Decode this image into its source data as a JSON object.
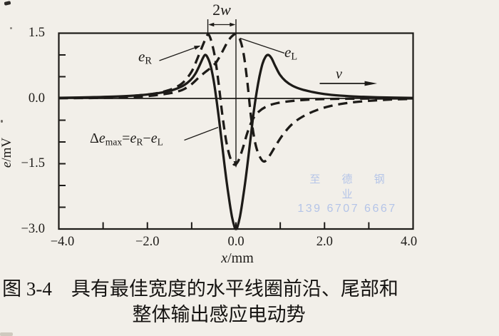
{
  "page": {
    "background": "#f2efe9",
    "ink": "#1d1b18"
  },
  "chart_data": {
    "type": "line",
    "xlabel_var": "x",
    "xlabel_unit": "/mm",
    "ylabel_var": "e",
    "ylabel_unit": "/mV",
    "xlim": [
      -4,
      4
    ],
    "ylim": [
      -3,
      1.5
    ],
    "grid": false,
    "x_ticks_labeled": [
      {
        "v": -4,
        "label": "−4.0"
      },
      {
        "v": -2,
        "label": "−2.0"
      },
      {
        "v": 0,
        "label": "0.0"
      },
      {
        "v": 2,
        "label": "2.0"
      },
      {
        "v": 4,
        "label": "4.0"
      }
    ],
    "x_ticks_minor": [
      -3,
      -2,
      -1,
      0,
      1,
      2,
      3
    ],
    "y_ticks_labeled": [
      {
        "v": 1.5,
        "label": "1.5"
      },
      {
        "v": 0,
        "label": "0.0"
      },
      {
        "v": -1.5,
        "label": "−1.5"
      },
      {
        "v": -3,
        "label": "−3.0"
      }
    ],
    "y_ticks_minor": [
      1.0,
      0.5,
      0,
      -0.5,
      -1.0,
      -1.5,
      -2.0,
      -2.5
    ],
    "zero_line": true,
    "series": [
      {
        "name": "e_R",
        "line": "dashed",
        "points": [
          [
            -4,
            0.01
          ],
          [
            -3.2,
            0.02
          ],
          [
            -2.6,
            0.04
          ],
          [
            -2.1,
            0.08
          ],
          [
            -1.8,
            0.12
          ],
          [
            -1.55,
            0.18
          ],
          [
            -1.35,
            0.26
          ],
          [
            -1.18,
            0.38
          ],
          [
            -1.0,
            0.62
          ],
          [
            -0.87,
            0.92
          ],
          [
            -0.75,
            1.22
          ],
          [
            -0.67,
            1.41
          ],
          [
            -0.62,
            1.47
          ],
          [
            -0.56,
            1.33
          ],
          [
            -0.48,
            0.98
          ],
          [
            -0.4,
            0.42
          ],
          [
            -0.31,
            -0.35
          ],
          [
            -0.22,
            -0.98
          ],
          [
            -0.13,
            -1.36
          ],
          [
            -0.04,
            -1.52
          ],
          [
            0.05,
            -1.44
          ],
          [
            0.15,
            -1.16
          ],
          [
            0.26,
            -0.78
          ],
          [
            0.38,
            -0.48
          ],
          [
            0.52,
            -0.3
          ],
          [
            0.7,
            -0.18
          ],
          [
            0.92,
            -0.11
          ],
          [
            1.2,
            -0.065
          ],
          [
            1.6,
            -0.03
          ],
          [
            2.1,
            -0.012
          ],
          [
            2.8,
            -0.004
          ],
          [
            3.5,
            0
          ],
          [
            4,
            0
          ]
        ]
      },
      {
        "name": "e_L",
        "line": "dashed",
        "points": [
          [
            -4,
            0.005
          ],
          [
            -3.2,
            0.01
          ],
          [
            -2.6,
            0.02
          ],
          [
            -2.1,
            0.045
          ],
          [
            -1.8,
            0.075
          ],
          [
            -1.55,
            0.11
          ],
          [
            -1.35,
            0.15
          ],
          [
            -1.18,
            0.21
          ],
          [
            -1.0,
            0.33
          ],
          [
            -0.85,
            0.47
          ],
          [
            -0.7,
            0.6
          ],
          [
            -0.55,
            0.72
          ],
          [
            -0.44,
            0.84
          ],
          [
            -0.32,
            1.05
          ],
          [
            -0.2,
            1.28
          ],
          [
            -0.1,
            1.42
          ],
          [
            0.01,
            1.48
          ],
          [
            0.1,
            1.33
          ],
          [
            0.18,
            0.98
          ],
          [
            0.26,
            0.35
          ],
          [
            0.34,
            -0.42
          ],
          [
            0.43,
            -1.0
          ],
          [
            0.52,
            -1.3
          ],
          [
            0.63,
            -1.45
          ],
          [
            0.75,
            -1.33
          ],
          [
            0.9,
            -1.08
          ],
          [
            1.07,
            -0.82
          ],
          [
            1.28,
            -0.58
          ],
          [
            1.52,
            -0.41
          ],
          [
            1.82,
            -0.27
          ],
          [
            2.15,
            -0.17
          ],
          [
            2.55,
            -0.1
          ],
          [
            3.0,
            -0.055
          ],
          [
            3.5,
            -0.025
          ],
          [
            4,
            -0.01
          ]
        ]
      },
      {
        "name": "delta_e_total",
        "line": "solid",
        "points": [
          [
            -4,
            0.015
          ],
          [
            -3.2,
            0.03
          ],
          [
            -2.6,
            0.05
          ],
          [
            -2.1,
            0.08
          ],
          [
            -1.8,
            0.115
          ],
          [
            -1.55,
            0.16
          ],
          [
            -1.35,
            0.22
          ],
          [
            -1.18,
            0.3
          ],
          [
            -1.03,
            0.42
          ],
          [
            -0.92,
            0.56
          ],
          [
            -0.83,
            0.74
          ],
          [
            -0.75,
            0.92
          ],
          [
            -0.7,
            1.0
          ],
          [
            -0.65,
            0.96
          ],
          [
            -0.58,
            0.78
          ],
          [
            -0.51,
            0.45
          ],
          [
            -0.45,
            0.05
          ],
          [
            -0.39,
            -0.42
          ],
          [
            -0.32,
            -1.0
          ],
          [
            -0.24,
            -1.68
          ],
          [
            -0.16,
            -2.28
          ],
          [
            -0.09,
            -2.72
          ],
          [
            -0.03,
            -2.96
          ],
          [
            0,
            -3.0
          ],
          [
            0.03,
            -2.96
          ],
          [
            0.09,
            -2.72
          ],
          [
            0.16,
            -2.28
          ],
          [
            0.24,
            -1.68
          ],
          [
            0.32,
            -1.0
          ],
          [
            0.39,
            -0.4
          ],
          [
            0.46,
            0.1
          ],
          [
            0.53,
            0.5
          ],
          [
            0.6,
            0.8
          ],
          [
            0.67,
            0.96
          ],
          [
            0.73,
            1.0
          ],
          [
            0.8,
            0.93
          ],
          [
            0.89,
            0.74
          ],
          [
            0.99,
            0.55
          ],
          [
            1.12,
            0.4
          ],
          [
            1.28,
            0.29
          ],
          [
            1.48,
            0.21
          ],
          [
            1.72,
            0.15
          ],
          [
            2.0,
            0.1
          ],
          [
            2.35,
            0.065
          ],
          [
            2.8,
            0.04
          ],
          [
            3.4,
            0.022
          ],
          [
            4,
            0.012
          ]
        ]
      }
    ],
    "annotations": {
      "coil_width": {
        "num": "2",
        "var": "w",
        "x_from": -0.635,
        "x_to": 0
      },
      "velocity": {
        "var": "v"
      },
      "e_right": {
        "var": "e",
        "sub": "R"
      },
      "e_left": {
        "var": "e",
        "sub": "L"
      },
      "delta_eq": {
        "delta": "Δ",
        "var": "e",
        "sub": "max",
        "equals": "=",
        "rhs_var1": "e",
        "rhs_sub1": "R",
        "minus": "−",
        "rhs_var2": "e",
        "rhs_sub2": "L"
      }
    }
  },
  "watermark": {
    "line1": "至 德 钢 业",
    "line2": "139 6707 6667",
    "color": "#aec0e8"
  },
  "caption": {
    "line1": "图 3-4　具有最佳宽度的水平线圈前沿、尾部和",
    "line2": "整体输出感应电动势"
  }
}
